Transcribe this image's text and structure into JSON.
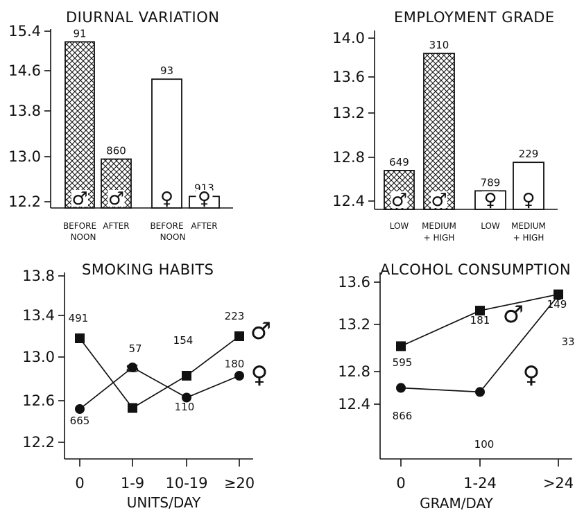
{
  "chart_data": [
    {
      "type": "bar",
      "title": "DIURNAL VARIATION",
      "ylim": [
        12.0,
        15.4
      ],
      "yticks": [
        "15.4",
        "14.6",
        "13.8",
        "13.0",
        "12.2"
      ],
      "categories": [
        {
          "line1": "BEFORE",
          "line2": ""
        },
        {
          "line1": "AFTER",
          "line2": ""
        },
        {
          "line1": "BEFORE",
          "line2": ""
        },
        {
          "line1": "AFTER",
          "line2": ""
        }
      ],
      "group_labels": [
        "NOON",
        "NOON"
      ],
      "values": [
        15.2,
        13.0,
        14.5,
        12.3
      ],
      "counts": [
        "91",
        "860",
        "93",
        "913"
      ],
      "symbols": [
        "♂",
        "♂",
        "♀",
        "♀"
      ],
      "fills": [
        "hatch",
        "hatch",
        "white",
        "white"
      ]
    },
    {
      "type": "bar",
      "title": "EMPLOYMENT GRADE",
      "ylim": [
        12.3,
        14.0
      ],
      "yticks": [
        "14.0",
        "13.6",
        "13.2",
        "12.8",
        "12.4"
      ],
      "categories": [
        {
          "line1": "LOW",
          "line2": ""
        },
        {
          "line1": "MEDIUM",
          "line2": "+ HIGH"
        },
        {
          "line1": "LOW",
          "line2": ""
        },
        {
          "line1": "MEDIUM",
          "line2": "+ HIGH"
        }
      ],
      "values": [
        12.7,
        13.85,
        12.5,
        12.78
      ],
      "counts": [
        "649",
        "310",
        "789",
        "229"
      ],
      "symbols": [
        "♂",
        "♂",
        "♀",
        "♀"
      ],
      "fills": [
        "hatch",
        "hatch",
        "white",
        "white"
      ]
    },
    {
      "type": "line",
      "title": "SMOKING HABITS",
      "xlabel": "UNITS/DAY",
      "ylim": [
        12.2,
        13.8
      ],
      "yticks": [
        "13.8",
        "13.4",
        "13.0",
        "12.6",
        "12.2"
      ],
      "categories": [
        "0",
        "1-9",
        "10-19",
        "≥20"
      ],
      "series": [
        {
          "symbol": "♂",
          "marker": "square",
          "values": [
            13.2,
            12.53,
            12.84,
            13.22
          ],
          "counts": [
            "491",
            "85",
            "154",
            "223"
          ]
        },
        {
          "symbol": "♀",
          "marker": "circle",
          "values": [
            12.52,
            12.92,
            12.63,
            12.84
          ],
          "counts": [
            "665",
            "57",
            "110",
            "180"
          ]
        }
      ]
    },
    {
      "type": "line",
      "title": "ALCOHOL CONSUMPTION",
      "xlabel": "GRAM/DAY",
      "ylim": [
        12.3,
        13.8
      ],
      "yticks": [
        "13.6",
        "13.2",
        "12.8",
        "12.4"
      ],
      "categories": [
        "0",
        "1-24",
        ">24"
      ],
      "series": [
        {
          "symbol": "♂",
          "marker": "square",
          "values": [
            12.97,
            13.32,
            13.48
          ],
          "counts": [
            "595",
            "181",
            "149"
          ]
        },
        {
          "symbol": "♀",
          "marker": "circle",
          "values": [
            12.56,
            12.52,
            13.47
          ],
          "counts": [
            "866",
            "100",
            "33"
          ]
        }
      ]
    }
  ]
}
